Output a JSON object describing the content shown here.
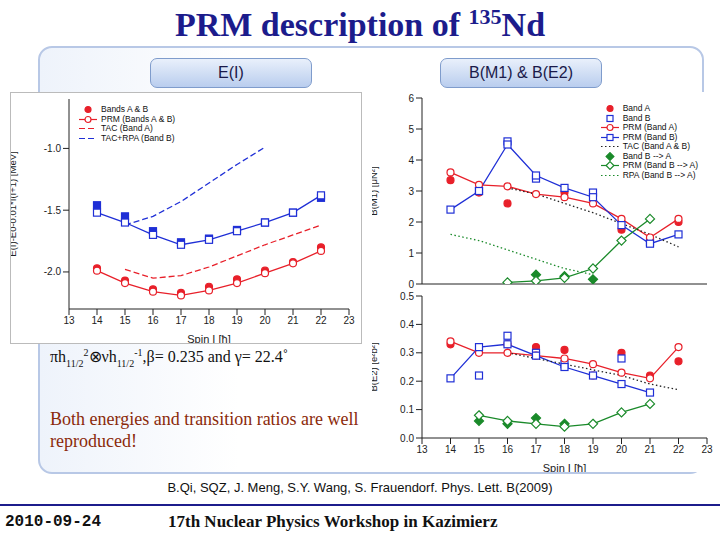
{
  "title": {
    "main": "PRM description of ",
    "superscript": "135",
    "element": "Nd"
  },
  "tabs": [
    "E(I)",
    "B(M1) & B(E2)"
  ],
  "configuration": [
    {
      "text": "πh"
    },
    {
      "sub": "11/2"
    },
    {
      "sup": "2"
    },
    {
      "text": "⊗νh"
    },
    {
      "sub": "11/2"
    },
    {
      "sup": "-1"
    },
    {
      "text": ",β= 0.235 and γ= 22.4˚"
    }
  ],
  "conclusion": "Both energies and transition ratios are well reproduced!",
  "reference": "B.Qi, SQZ, J. Meng, S.Y. Wang, S. Frauendorf. Phys. Lett. B(2009)",
  "footer": {
    "date": "2010-09-24",
    "event": "17th Nuclear Physics Workshop in Kazimierz"
  },
  "chart_data": [
    {
      "type": "line",
      "x_label": "Spin I [ħ]",
      "y_label": "E(I)-E0-0.01*I(I+1) [MeV]",
      "x": [
        14,
        15,
        16,
        17,
        18,
        19,
        20,
        21,
        22
      ],
      "xlim": [
        13,
        23
      ],
      "xticks": [
        13,
        14,
        15,
        16,
        17,
        18,
        19,
        20,
        21,
        22,
        23
      ],
      "ylim": [
        -2.3,
        -0.6
      ],
      "yticks": [
        {
          "value": -1,
          "label": "-1.0"
        },
        -1.5,
        {
          "value": -2,
          "label": "-2.0"
        }
      ],
      "legend": "upper left",
      "series": [
        {
          "name": "Bands A & B",
          "color": "#e8202a",
          "marker": "circle",
          "line_style": "none",
          "values": [
            -1.97,
            -2.07,
            -2.14,
            -2.17,
            -2.12,
            -2.06,
            -1.99,
            -1.92,
            -1.8
          ]
        },
        {
          "name": "Bands A & B",
          "color": "#1f2fd6",
          "marker": "square",
          "line_style": "none",
          "values": [
            -1.46,
            -1.55,
            -1.67,
            -1.76,
            -1.73,
            -1.66,
            -1.6,
            -1.52,
            -1.4
          ]
        },
        {
          "name": "PRM (Bands A & B)",
          "color": "#e8202a",
          "marker": "open_circle",
          "line_style": "solid",
          "values": [
            -1.99,
            -2.09,
            -2.16,
            -2.19,
            -2.15,
            -2.09,
            -2.01,
            -1.93,
            -1.83
          ]
        },
        {
          "name": "PRM (Bands A & B)",
          "color": "#1f2fd6",
          "marker": "open_square",
          "line_style": "solid",
          "values": [
            -1.52,
            -1.6,
            -1.7,
            -1.78,
            -1.74,
            -1.67,
            -1.6,
            -1.52,
            -1.38
          ]
        },
        {
          "name": "TAC (Band A)",
          "color": "#e8202a",
          "marker": "none",
          "line_style": "dashed",
          "values": [
            null,
            -1.98,
            -2.05,
            -2.03,
            -1.96,
            -1.87,
            -1.78,
            -1.7,
            -1.62
          ]
        },
        {
          "name": "TAC+RPA (Band B)",
          "color": "#1f2fd6",
          "marker": "none",
          "line_style": "dashed",
          "values": [
            null,
            -1.62,
            -1.55,
            -1.43,
            -1.28,
            -1.13,
            -0.99,
            null,
            null
          ]
        }
      ]
    },
    {
      "type": "line",
      "y_label": "B(M1) [μN²]",
      "x": [
        14,
        15,
        16,
        17,
        18,
        19,
        20,
        21,
        22
      ],
      "xlim": [
        13,
        23
      ],
      "xticks": [
        13,
        14,
        15,
        16,
        17,
        18,
        19,
        20,
        21,
        22,
        23
      ],
      "ylim": [
        0,
        6
      ],
      "yticks": [
        0,
        1,
        2,
        3,
        4,
        5,
        6
      ],
      "tick_labels": "y",
      "legend": "upper right",
      "series": [
        {
          "name": "Band A",
          "color": "#e8202a",
          "marker": "circle",
          "line_style": "none",
          "values": [
            3.35,
            2.95,
            2.6,
            null,
            2.95,
            null,
            1.75,
            null,
            2.0
          ]
        },
        {
          "name": "Band B",
          "color": "#1f2fd6",
          "marker": "open_square",
          "line_style": "none",
          "values": [
            null,
            3.0,
            4.6,
            3.4,
            null,
            2.95,
            null,
            1.35,
            null
          ]
        },
        {
          "name": "PRM (Band A)",
          "color": "#e8202a",
          "marker": "open_circle",
          "line_style": "solid",
          "values": [
            3.6,
            3.2,
            3.15,
            2.9,
            2.8,
            2.6,
            2.1,
            1.5,
            2.1
          ]
        },
        {
          "name": "PRM (Band B)",
          "color": "#1f2fd6",
          "marker": "open_square",
          "line_style": "solid",
          "values": [
            2.4,
            3.0,
            4.5,
            3.5,
            3.1,
            2.8,
            1.9,
            1.3,
            1.6
          ]
        },
        {
          "name": "TAC (Band A & B)",
          "color": "#222222",
          "marker": "none",
          "line_style": "dotted",
          "values": [
            null,
            null,
            3.1,
            2.9,
            2.6,
            2.3,
            1.95,
            1.6,
            1.2
          ]
        },
        {
          "name": "Band B --> A",
          "color": "#1a8a2a",
          "marker": "diamond",
          "line_style": "none",
          "values": [
            null,
            null,
            null,
            0.3,
            0.25,
            0.15,
            null,
            null,
            null
          ]
        },
        {
          "name": "PRM (Band B --> A)",
          "color": "#1a8a2a",
          "marker": "open_diamond",
          "line_style": "solid",
          "values": [
            null,
            null,
            0.05,
            0.1,
            0.2,
            0.5,
            1.4,
            2.1,
            null
          ]
        },
        {
          "name": "RPA (Band B --> A)",
          "color": "#1a8a2a",
          "marker": "none",
          "line_style": "dotted",
          "values": [
            1.6,
            1.4,
            1.1,
            0.8,
            0.5,
            0.3,
            null,
            null,
            null
          ]
        }
      ]
    },
    {
      "type": "line",
      "x_label": "Spin I [ħ]",
      "y_label": "B(E2) [e²b²]",
      "x": [
        14,
        15,
        16,
        17,
        18,
        19,
        20,
        21,
        22
      ],
      "xlim": [
        13,
        23
      ],
      "xticks": [
        13,
        14,
        15,
        16,
        17,
        18,
        19,
        20,
        21,
        22,
        23
      ],
      "ylim": [
        0,
        0.5
      ],
      "yticks": [
        {
          "value": 0,
          "label": "0.0"
        },
        0.1,
        0.2,
        0.3,
        0.4,
        0.5
      ],
      "series": [
        {
          "name": "Band A",
          "color": "#e8202a",
          "marker": "circle",
          "line_style": "none",
          "values": [
            0.33,
            0.31,
            0.33,
            0.32,
            0.31,
            0.22,
            0.3,
            0.22,
            0.27
          ]
        },
        {
          "name": "Band B",
          "color": "#1f2fd6",
          "marker": "open_square",
          "line_style": "none",
          "values": [
            null,
            0.22,
            0.36,
            0.3,
            0.26,
            null,
            0.28,
            null,
            null
          ]
        },
        {
          "name": "PRM (Band A)",
          "color": "#e8202a",
          "marker": "open_circle",
          "line_style": "solid",
          "values": [
            0.34,
            0.3,
            0.3,
            0.29,
            0.28,
            0.26,
            0.23,
            0.21,
            0.32
          ]
        },
        {
          "name": "PRM (Band B)",
          "color": "#1f2fd6",
          "marker": "open_square",
          "line_style": "solid",
          "values": [
            0.21,
            0.32,
            0.33,
            0.29,
            0.25,
            0.22,
            0.19,
            0.16,
            null
          ]
        },
        {
          "name": "TAC (Band A & B)",
          "color": "#222222",
          "marker": "none",
          "line_style": "dotted",
          "values": [
            null,
            null,
            0.3,
            0.28,
            0.26,
            0.24,
            0.22,
            0.19,
            0.17
          ]
        },
        {
          "name": "Band B --> A",
          "color": "#1a8a2a",
          "marker": "diamond",
          "line_style": "none",
          "values": [
            null,
            0.06,
            0.05,
            0.07,
            0.05,
            null,
            null,
            null,
            null
          ]
        },
        {
          "name": "PRM (Band B --> A)",
          "color": "#1a8a2a",
          "marker": "open_diamond",
          "line_style": "solid",
          "values": [
            null,
            0.08,
            0.06,
            0.05,
            0.04,
            0.05,
            0.09,
            0.12,
            null
          ]
        }
      ]
    }
  ]
}
